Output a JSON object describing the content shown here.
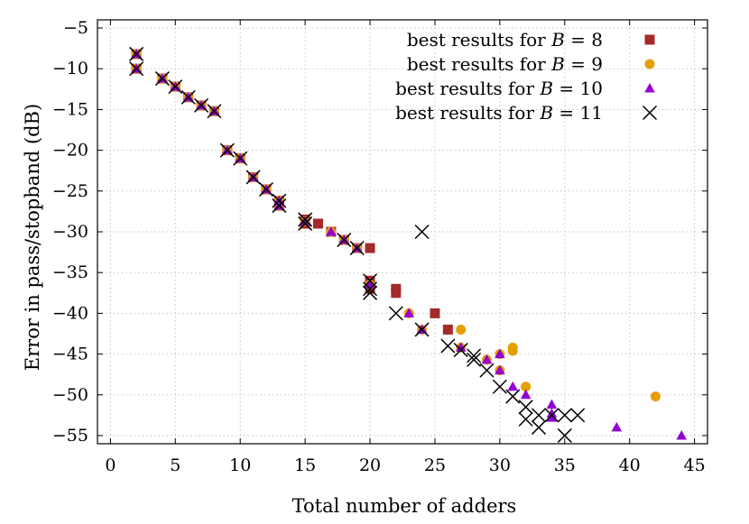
{
  "chart_data": {
    "type": "scatter",
    "title": "",
    "xlabel": "Total number of adders",
    "ylabel": "Error in pass/stopband (dB)",
    "xlim": [
      -1,
      46
    ],
    "ylim": [
      -56,
      -4
    ],
    "xticks": [
      0,
      5,
      10,
      15,
      20,
      25,
      30,
      35,
      40,
      45
    ],
    "yticks": [
      -5,
      -10,
      -15,
      -20,
      -25,
      -30,
      -35,
      -40,
      -45,
      -50,
      -55
    ],
    "xtick_labels": [
      "0",
      "5",
      "10",
      "15",
      "20",
      "25",
      "30",
      "35",
      "40",
      "45"
    ],
    "ytick_labels": [
      "−5",
      "−10",
      "−15",
      "−20",
      "−25",
      "−30",
      "−35",
      "−40",
      "−45",
      "−50",
      "−55"
    ],
    "grid": true,
    "legend_position": "top-right",
    "series": [
      {
        "name": "best results for B = 8",
        "legend_prefix": "best results for ",
        "legend_var": "B",
        "legend_value": " = 8",
        "marker": "square",
        "color": "#a52a2a",
        "points": [
          [
            2,
            -8.2
          ],
          [
            2,
            -10
          ],
          [
            4,
            -11.2
          ],
          [
            5,
            -12.2
          ],
          [
            6,
            -13.5
          ],
          [
            7,
            -14.5
          ],
          [
            8,
            -15.2
          ],
          [
            9,
            -20
          ],
          [
            10,
            -21
          ],
          [
            11,
            -23.3
          ],
          [
            12,
            -24.8
          ],
          [
            13,
            -26.2
          ],
          [
            13,
            -26.8
          ],
          [
            15,
            -28.5
          ],
          [
            15,
            -29
          ],
          [
            16,
            -29
          ],
          [
            17,
            -30
          ],
          [
            18,
            -31
          ],
          [
            19,
            -32
          ],
          [
            20,
            -32
          ],
          [
            20,
            -36
          ],
          [
            20,
            -37
          ],
          [
            22,
            -37
          ],
          [
            22,
            -37.5
          ],
          [
            25,
            -40
          ],
          [
            26,
            -42
          ]
        ]
      },
      {
        "name": "best results for B = 9",
        "legend_prefix": "best results for ",
        "legend_var": "B",
        "legend_value": " = 9",
        "marker": "circle",
        "color": "#e69f00",
        "points": [
          [
            2,
            -8.2
          ],
          [
            2,
            -10
          ],
          [
            4,
            -11.2
          ],
          [
            5,
            -12.2
          ],
          [
            6,
            -13.5
          ],
          [
            7,
            -14.5
          ],
          [
            8,
            -15.2
          ],
          [
            9,
            -20
          ],
          [
            10,
            -21
          ],
          [
            11,
            -23.3
          ],
          [
            12,
            -24.8
          ],
          [
            13,
            -26.2
          ],
          [
            13,
            -26.8
          ],
          [
            15,
            -28.7
          ],
          [
            17,
            -30
          ],
          [
            18,
            -31
          ],
          [
            19,
            -32
          ],
          [
            20,
            -36.5
          ],
          [
            23,
            -40
          ],
          [
            24,
            -42
          ],
          [
            27,
            -42
          ],
          [
            27,
            -44.2
          ],
          [
            29,
            -45.7
          ],
          [
            30,
            -45
          ],
          [
            30,
            -47
          ],
          [
            31,
            -44.2
          ],
          [
            31,
            -44.6
          ],
          [
            32,
            -49
          ],
          [
            42,
            -50.2
          ]
        ]
      },
      {
        "name": "best results for B = 10",
        "legend_prefix": "best results for ",
        "legend_var": "B",
        "legend_value": " = 10",
        "marker": "triangle",
        "color": "#9400d3",
        "points": [
          [
            2,
            -8.2
          ],
          [
            2,
            -10
          ],
          [
            4,
            -11.2
          ],
          [
            5,
            -12.2
          ],
          [
            6,
            -13.5
          ],
          [
            7,
            -14.5
          ],
          [
            8,
            -15.2
          ],
          [
            9,
            -20
          ],
          [
            10,
            -21
          ],
          [
            11,
            -23.3
          ],
          [
            12,
            -24.8
          ],
          [
            13,
            -26.2
          ],
          [
            13,
            -26.8
          ],
          [
            15,
            -28.7
          ],
          [
            17,
            -30
          ],
          [
            18,
            -31
          ],
          [
            19,
            -32
          ],
          [
            20,
            -36.5
          ],
          [
            23,
            -40
          ],
          [
            24,
            -42
          ],
          [
            27,
            -44.2
          ],
          [
            29,
            -45.7
          ],
          [
            30,
            -45
          ],
          [
            30,
            -47
          ],
          [
            31,
            -49
          ],
          [
            32,
            -50
          ],
          [
            34,
            -51.2
          ],
          [
            34,
            -52.3
          ],
          [
            34,
            -52.8
          ],
          [
            39,
            -54
          ],
          [
            44,
            -55
          ]
        ]
      },
      {
        "name": "best results for B = 11",
        "legend_prefix": "best results for ",
        "legend_var": "B",
        "legend_value": " = 11",
        "marker": "cross",
        "color": "#000000",
        "points": [
          [
            2,
            -8.2
          ],
          [
            2,
            -10
          ],
          [
            4,
            -11.2
          ],
          [
            5,
            -12.2
          ],
          [
            6,
            -13.5
          ],
          [
            7,
            -14.5
          ],
          [
            8,
            -15.2
          ],
          [
            9,
            -20
          ],
          [
            10,
            -21
          ],
          [
            11,
            -23.3
          ],
          [
            12,
            -24.8
          ],
          [
            13,
            -26.2
          ],
          [
            13,
            -26.8
          ],
          [
            15,
            -28.5
          ],
          [
            15,
            -29
          ],
          [
            18,
            -31
          ],
          [
            19,
            -32
          ],
          [
            20,
            -36
          ],
          [
            20,
            -37
          ],
          [
            20,
            -37.5
          ],
          [
            22,
            -40
          ],
          [
            24,
            -30
          ],
          [
            24,
            -42
          ],
          [
            26,
            -44
          ],
          [
            27,
            -44.5
          ],
          [
            28,
            -45.2
          ],
          [
            28,
            -45.7
          ],
          [
            29,
            -47
          ],
          [
            30,
            -49
          ],
          [
            31,
            -50.2
          ],
          [
            32,
            -51.5
          ],
          [
            32,
            -53
          ],
          [
            33,
            -52.5
          ],
          [
            33,
            -54
          ],
          [
            34,
            -52.5
          ],
          [
            35,
            -52.5
          ],
          [
            35,
            -55
          ],
          [
            36,
            -52.5
          ]
        ]
      }
    ]
  }
}
